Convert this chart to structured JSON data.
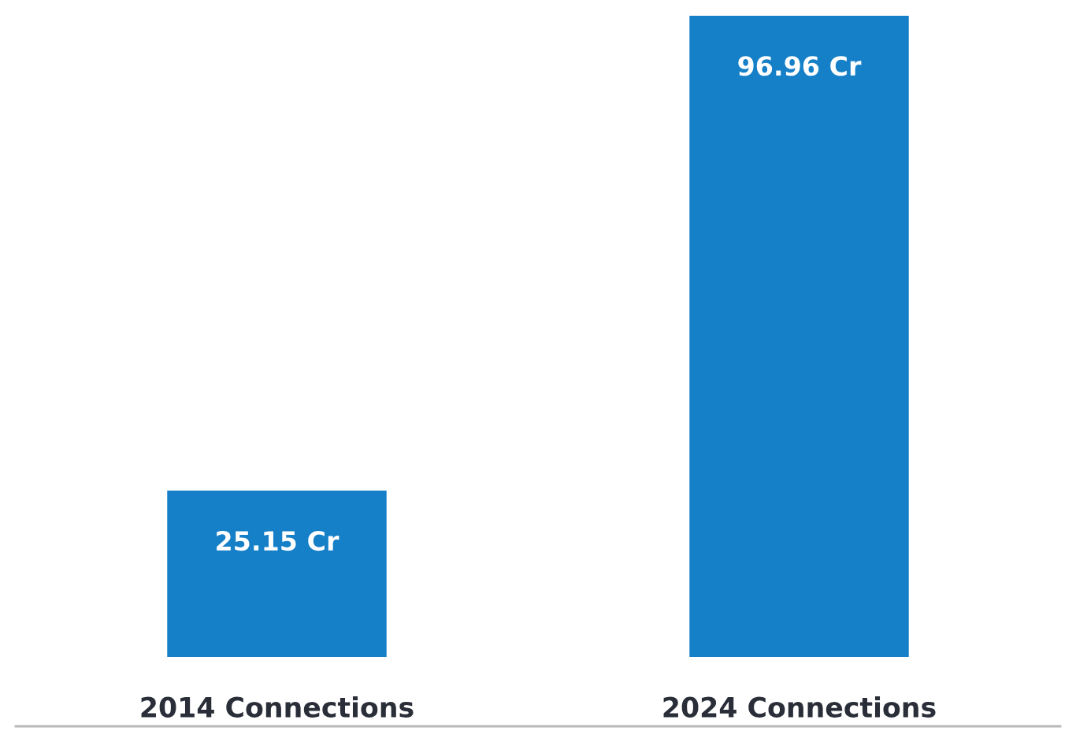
{
  "chart_data": {
    "type": "bar",
    "categories": [
      "2014 Connections",
      "2024 Connections"
    ],
    "values": [
      25.15,
      96.96
    ],
    "value_labels": [
      "25.15 Cr",
      "96.96 Cr"
    ],
    "color": "#1580c8",
    "grid": false,
    "legend": false
  }
}
